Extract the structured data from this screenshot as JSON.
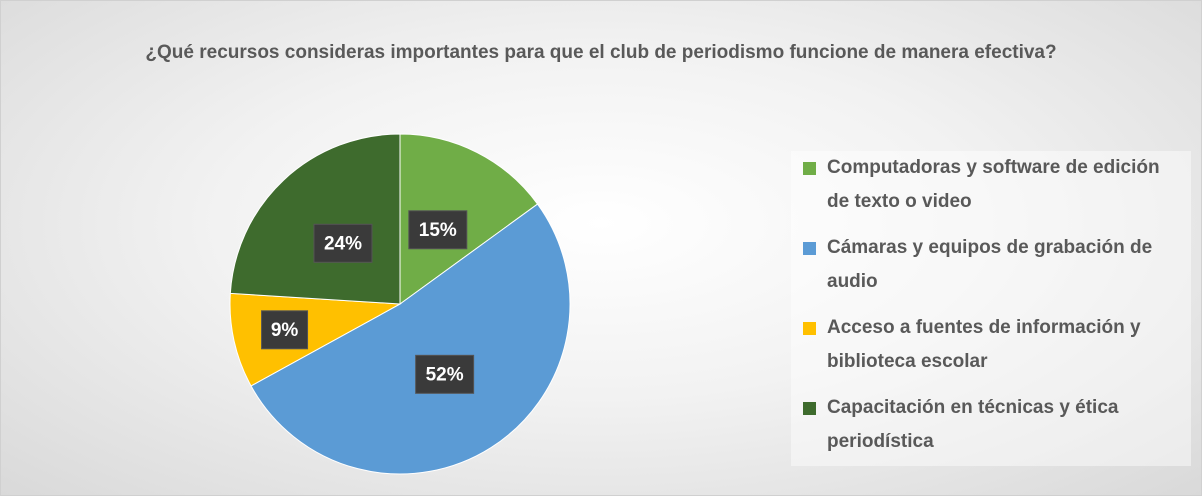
{
  "chart_data": {
    "type": "pie",
    "title": "¿Qué recursos consideras importantes para que el club de periodismo funcione de manera efectiva?",
    "categories": [
      "Computadoras y software de edición de texto o video",
      "Cámaras y equipos de grabación de audio",
      "Acceso a fuentes de información y biblioteca escolar",
      "Capacitación en técnicas y ética periodística"
    ],
    "values": [
      15,
      52,
      9,
      24
    ],
    "value_labels": [
      "15%",
      "52%",
      "9%",
      "24%"
    ],
    "colors": [
      "#70ad47",
      "#5b9bd5",
      "#ffc000",
      "#3e6b2d"
    ],
    "legend": "right"
  }
}
